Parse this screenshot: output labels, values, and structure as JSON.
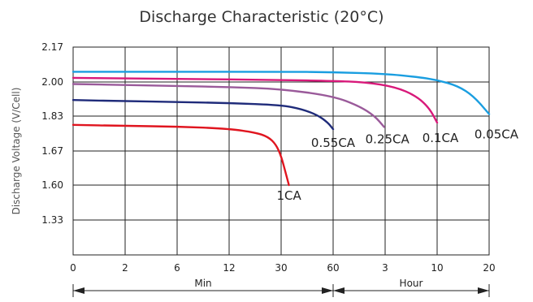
{
  "chart_data": {
    "type": "line",
    "title": "Discharge Characteristic (20°C)",
    "ylabel": "Discharge Voltage (V/Cell)",
    "xlabel": "",
    "y_ticks": [
      "2.17",
      "2.00",
      "1.83",
      "1.67",
      "1.60",
      "1.33"
    ],
    "x_ticks": [
      "0",
      "2",
      "6",
      "12",
      "30",
      "60",
      "3",
      "10",
      "20"
    ],
    "x_units": [
      {
        "label": "Min",
        "from_tick": 0,
        "to_tick": 5
      },
      {
        "label": "Hour",
        "from_tick": 5,
        "to_tick": 8
      }
    ],
    "grid": true,
    "legend": "none",
    "series": [
      {
        "name": "1CA",
        "color": "#e0151f",
        "points": [
          [
            0,
            1.79
          ],
          [
            1,
            1.785
          ],
          [
            2,
            1.782
          ],
          [
            3,
            1.772
          ],
          [
            3.5,
            1.755
          ],
          [
            3.75,
            1.735
          ],
          [
            3.9,
            1.7
          ],
          [
            4.0,
            1.66
          ],
          [
            4.1,
            1.62
          ],
          [
            4.15,
            1.6
          ]
        ]
      },
      {
        "name": "0.55CA",
        "color": "#1f2b7a",
        "points": [
          [
            0,
            1.91
          ],
          [
            1,
            1.905
          ],
          [
            2,
            1.9
          ],
          [
            3,
            1.895
          ],
          [
            4,
            1.885
          ],
          [
            4.4,
            1.865
          ],
          [
            4.7,
            1.835
          ],
          [
            4.9,
            1.8
          ],
          [
            5.0,
            1.77
          ]
        ]
      },
      {
        "name": "0.25CA",
        "color": "#9a5a9a",
        "points": [
          [
            0,
            1.99
          ],
          [
            1,
            1.985
          ],
          [
            2,
            1.98
          ],
          [
            3,
            1.975
          ],
          [
            4,
            1.965
          ],
          [
            5,
            1.93
          ],
          [
            5.5,
            1.88
          ],
          [
            5.8,
            1.83
          ],
          [
            5.98,
            1.78
          ]
        ]
      },
      {
        "name": "0.1CA",
        "color": "#d8197a",
        "points": [
          [
            0,
            2.02
          ],
          [
            2,
            2.015
          ],
          [
            4,
            2.01
          ],
          [
            5,
            2.005
          ],
          [
            5.6,
            2.0
          ],
          [
            6.2,
            1.975
          ],
          [
            6.6,
            1.93
          ],
          [
            6.85,
            1.87
          ],
          [
            7.0,
            1.8
          ]
        ]
      },
      {
        "name": "0.05CA",
        "color": "#1a9ee0",
        "points": [
          [
            0,
            2.05
          ],
          [
            2,
            2.05
          ],
          [
            4,
            2.05
          ],
          [
            5,
            2.048
          ],
          [
            6,
            2.04
          ],
          [
            6.6,
            2.025
          ],
          [
            7,
            2.01
          ],
          [
            7.4,
            1.98
          ],
          [
            7.7,
            1.93
          ],
          [
            8.0,
            1.84
          ]
        ]
      }
    ],
    "labels": [
      {
        "text": "1CA",
        "series": "1CA"
      },
      {
        "text": "0.55CA",
        "series": "0.55CA"
      },
      {
        "text": "0.25CA",
        "series": "0.25CA"
      },
      {
        "text": "0.1CA",
        "series": "0.1CA"
      },
      {
        "text": "0.05CA",
        "series": "0.05CA"
      }
    ]
  }
}
